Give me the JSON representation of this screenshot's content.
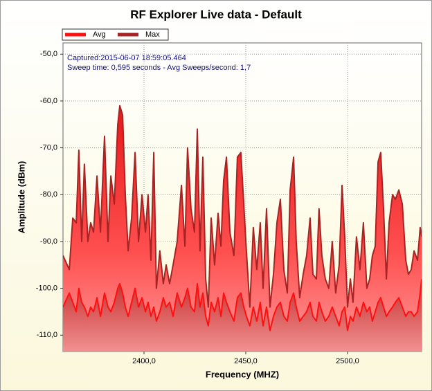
{
  "chart_data": {
    "type": "area",
    "title": "RF Explorer Live data - Default",
    "xlabel": "Frequency (MHZ)",
    "ylabel": "Amplitude (dBm)",
    "annotations": [
      "Captured:2015-06-07 18:59:05.464",
      "Sweep time: 0,595 seconds - Avg Sweeps/second: 1,7"
    ],
    "legend": "top-left",
    "grid": true,
    "xlim": [
      2360.2,
      2536.4
    ],
    "ylim": [
      -113.5,
      -47.6
    ],
    "xticks": [
      {
        "value": 2400,
        "label": "2400,0"
      },
      {
        "value": 2450,
        "label": "2450,0"
      },
      {
        "value": 2500,
        "label": "2500,0"
      }
    ],
    "yticks": [
      {
        "value": -50,
        "label": "-50,0"
      },
      {
        "value": -60,
        "label": "-60,0"
      },
      {
        "value": -70,
        "label": "-70,0"
      },
      {
        "value": -80,
        "label": "-80,0"
      },
      {
        "value": -90,
        "label": "-90,0"
      },
      {
        "value": -100,
        "label": "-100,0"
      },
      {
        "value": -110,
        "label": "-110,0"
      }
    ],
    "x": [
      2360.2,
      2363.3,
      2365,
      2366.7,
      2368,
      2369.4,
      2370.7,
      2372.4,
      2373.8,
      2375.2,
      2376.9,
      2378.6,
      2380.6,
      2382.3,
      2383.7,
      2385.4,
      2387.1,
      2388.1,
      2389.5,
      2390.8,
      2392.2,
      2393.9,
      2395.6,
      2397.3,
      2399,
      2400.7,
      2402,
      2403.4,
      2404.8,
      2406.1,
      2407.8,
      2409.5,
      2410.9,
      2412.6,
      2414.3,
      2416.3,
      2418.4,
      2420.1,
      2421.4,
      2423.1,
      2424.8,
      2426.2,
      2427.5,
      2428.9,
      2430.3,
      2431.6,
      2433,
      2434.7,
      2436.4,
      2437.8,
      2439.1,
      2440.5,
      2442.2,
      2444.2,
      2445.9,
      2447.6,
      2449,
      2450.3,
      2452,
      2453.7,
      2455.4,
      2457.1,
      2458.5,
      2460.2,
      2461.9,
      2463.6,
      2465.3,
      2467,
      2468.7,
      2470.4,
      2471.8,
      2473.5,
      2474.8,
      2476.5,
      2478.2,
      2479.9,
      2481.6,
      2483,
      2484.7,
      2486,
      2487.4,
      2489.1,
      2490.8,
      2492.5,
      2494.2,
      2495.9,
      2497.3,
      2498.6,
      2500,
      2501.4,
      2502.7,
      2504.4,
      2506.1,
      2507.8,
      2509.5,
      2510.9,
      2512.2,
      2513.6,
      2515,
      2516.3,
      2517.7,
      2519.1,
      2520.4,
      2522.1,
      2523.5,
      2525.2,
      2526.9,
      2528.6,
      2529.9,
      2531.3,
      2532.7,
      2534.4,
      2535.7,
      2536.4
    ],
    "series": [
      {
        "name": "Max",
        "color": "#a82424",
        "fill": "#ff3a3a",
        "values": [
          -93,
          -96,
          -85,
          -86,
          -70.5,
          -90,
          -73.5,
          -90,
          -86,
          -88,
          -76,
          -88,
          -67.5,
          -90,
          -76,
          -82,
          -65,
          -61,
          -63,
          -80,
          -92,
          -85,
          -71,
          -90,
          -80,
          -88,
          -80,
          -94,
          -71,
          -100,
          -92,
          -99,
          -95,
          -99,
          -95,
          -90,
          -78,
          -91,
          -70,
          -83,
          -88,
          -66,
          -92,
          -72,
          -98,
          -104,
          -85,
          -95,
          -84,
          -91,
          -77,
          -72,
          -88,
          -93,
          -72,
          -71,
          -82,
          -92,
          -104,
          -87,
          -96,
          -86,
          -100,
          -83,
          -104,
          -97,
          -86,
          -81,
          -96,
          -101,
          -79,
          -72,
          -90,
          -102,
          -97,
          -93,
          -85,
          -97,
          -98,
          -83,
          -93,
          -98,
          -100,
          -90,
          -101,
          -95,
          -78,
          -89,
          -104,
          -98,
          -103,
          -89,
          -96,
          -86,
          -100,
          -98,
          -93,
          -91,
          -73,
          -71,
          -83,
          -98,
          -86,
          -80,
          -81,
          -79,
          -82,
          -94,
          -97,
          -96,
          -92,
          -94,
          -87,
          -89
        ]
      },
      {
        "name": "Avg",
        "color": "#ff1010",
        "fill": "#b83030",
        "values": [
          -104,
          -101,
          -103,
          -105,
          -100,
          -103,
          -104,
          -106,
          -104,
          -105,
          -102,
          -106,
          -101,
          -104,
          -105,
          -103,
          -100,
          -99,
          -101,
          -104,
          -106,
          -103,
          -100,
          -104,
          -102,
          -105,
          -103,
          -106,
          -104,
          -107,
          -105,
          -102,
          -104,
          -103,
          -106,
          -101,
          -104,
          -102,
          -100,
          -104,
          -105,
          -99,
          -104,
          -101,
          -106,
          -108,
          -103,
          -105,
          -102,
          -106,
          -101,
          -103,
          -105,
          -107,
          -102,
          -101,
          -104,
          -106,
          -108,
          -104,
          -107,
          -103,
          -108,
          -104,
          -109,
          -106,
          -104,
          -103,
          -106,
          -107,
          -103,
          -101,
          -104,
          -107,
          -106,
          -105,
          -103,
          -106,
          -107,
          -103,
          -105,
          -107,
          -106,
          -104,
          -106,
          -108,
          -105,
          -104,
          -109,
          -106,
          -107,
          -104,
          -106,
          -103,
          -105,
          -104,
          -107,
          -105,
          -103,
          -102,
          -104,
          -106,
          -105,
          -104,
          -103,
          -102,
          -104,
          -106,
          -105,
          -105,
          -106,
          -105,
          -101,
          -98
        ]
      }
    ]
  }
}
